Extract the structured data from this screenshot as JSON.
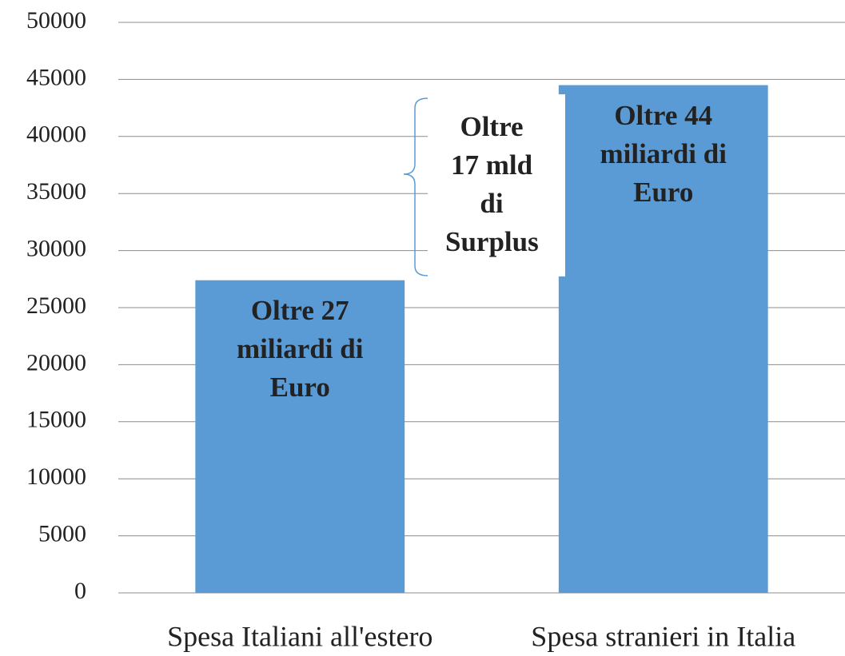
{
  "chart_data": {
    "type": "bar",
    "categories": [
      "Spesa Italiani all'estero",
      "Spesa stranieri in Italia"
    ],
    "values": [
      27400,
      44500
    ],
    "value_labels": [
      "Oltre 27 miliardi di Euro",
      "Oltre 44 miliardi di Euro"
    ],
    "color": "#5b9bd5",
    "ylim": [
      0,
      50000
    ],
    "yticks": [
      0,
      5000,
      10000,
      15000,
      20000,
      25000,
      30000,
      35000,
      40000,
      45000,
      50000
    ],
    "grid": true,
    "annotations": [
      "Oltre 17 mld di Surplus"
    ]
  }
}
